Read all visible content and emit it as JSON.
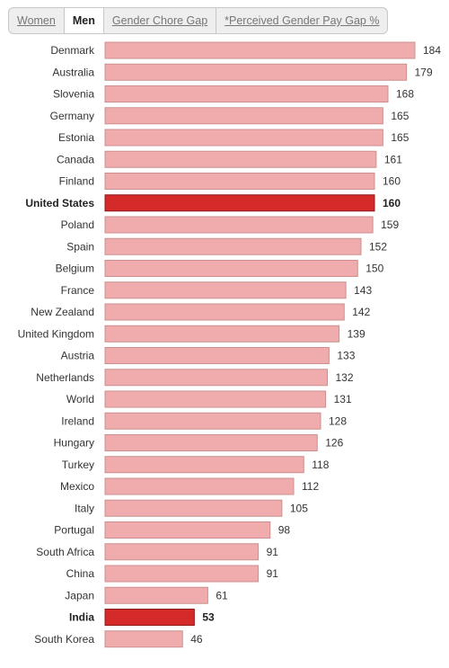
{
  "tabs": [
    {
      "label": "Women",
      "active": false
    },
    {
      "label": "Men",
      "active": true
    },
    {
      "label": "Gender Chore Gap",
      "active": false
    },
    {
      "label": "*Perceived Gender Pay Gap %",
      "active": false
    }
  ],
  "colors": {
    "bar": "#f0acac",
    "bar_stroke": "#cc8f8f",
    "highlight": "#d42a2a",
    "highlight_stroke": "#8f1a1a"
  },
  "chart_data": {
    "type": "bar",
    "orientation": "horizontal",
    "categories": [
      "Denmark",
      "Australia",
      "Slovenia",
      "Germany",
      "Estonia",
      "Canada",
      "Finland",
      "United States",
      "Poland",
      "Spain",
      "Belgium",
      "France",
      "New Zealand",
      "United Kingdom",
      "Austria",
      "Netherlands",
      "World",
      "Ireland",
      "Hungary",
      "Turkey",
      "Mexico",
      "Italy",
      "Portugal",
      "South Africa",
      "China",
      "Japan",
      "India",
      "South Korea"
    ],
    "values": [
      184,
      179,
      168,
      165,
      165,
      161,
      160,
      160,
      159,
      152,
      150,
      143,
      142,
      139,
      133,
      132,
      131,
      128,
      126,
      118,
      112,
      105,
      98,
      91,
      91,
      61,
      53,
      46
    ],
    "highlighted": [
      "United States",
      "India"
    ],
    "grid": false
  }
}
